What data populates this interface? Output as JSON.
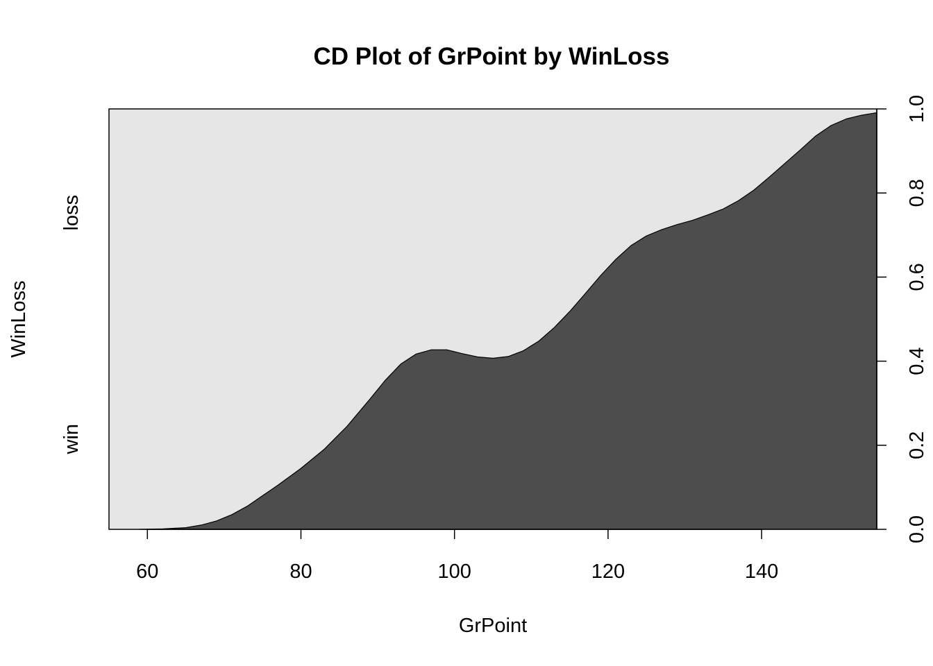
{
  "chart_data": {
    "type": "area",
    "title": "CD Plot of GrPoint by WinLoss",
    "xlabel": "GrPoint",
    "ylabel": "WinLoss",
    "xlim": [
      55,
      155
    ],
    "ylim": [
      0,
      1
    ],
    "x_ticks": [
      60,
      80,
      100,
      120,
      140
    ],
    "y_ticks": [
      0.0,
      0.2,
      0.4,
      0.6,
      0.8,
      1.0
    ],
    "y_tick_labels": [
      "0.0",
      "0.2",
      "0.4",
      "0.6",
      "0.8",
      "1.0"
    ],
    "categories": [
      "win",
      "loss"
    ],
    "series": [
      {
        "name": "win",
        "color": "#4d4d4d",
        "x": [
          59,
          62,
          65,
          67,
          69,
          71,
          73,
          75,
          77,
          80,
          83,
          86,
          89,
          91,
          93,
          95,
          97,
          99,
          101,
          103,
          105,
          107,
          109,
          111,
          113,
          115,
          117,
          119,
          121,
          123,
          125,
          127,
          129,
          131,
          133,
          135,
          137,
          139,
          141,
          143,
          145,
          147,
          149,
          151,
          153,
          155
        ],
        "values": [
          0.0,
          0.001,
          0.004,
          0.01,
          0.02,
          0.035,
          0.055,
          0.08,
          0.105,
          0.145,
          0.19,
          0.245,
          0.31,
          0.355,
          0.393,
          0.417,
          0.427,
          0.427,
          0.418,
          0.41,
          0.407,
          0.411,
          0.425,
          0.448,
          0.48,
          0.518,
          0.56,
          0.603,
          0.642,
          0.675,
          0.698,
          0.713,
          0.725,
          0.735,
          0.748,
          0.762,
          0.782,
          0.807,
          0.838,
          0.87,
          0.902,
          0.935,
          0.96,
          0.976,
          0.985,
          0.991
        ]
      },
      {
        "name": "loss",
        "color": "#e6e6e6"
      }
    ]
  }
}
